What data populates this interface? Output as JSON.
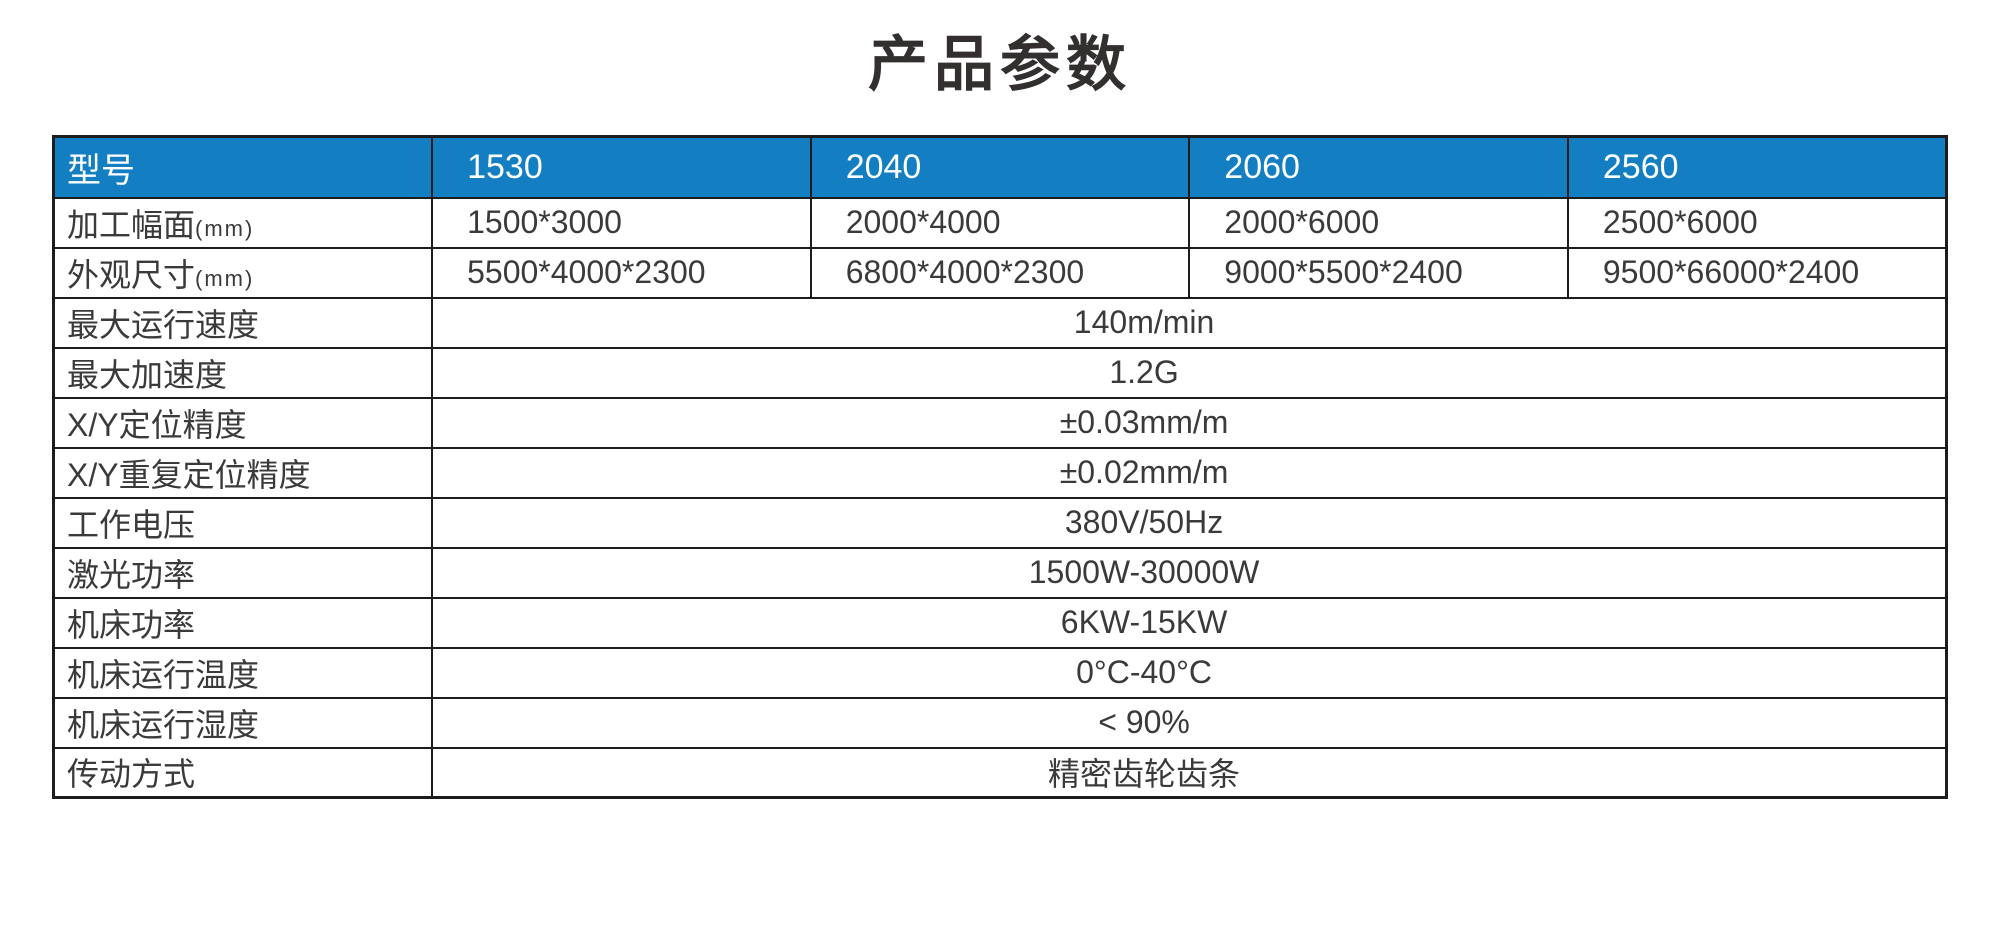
{
  "page": {
    "title": "产品参数"
  },
  "colors": {
    "header_bg": "#137fc2",
    "header_text": "#ffffff",
    "border": "#1d1d1d",
    "body_text": "#3a3a3a"
  },
  "table": {
    "header": {
      "label": "型号",
      "models": [
        "1530",
        "2040",
        "2060",
        "2560"
      ]
    },
    "dim_rows": [
      {
        "label": "加工幅面",
        "suffix": "(mm)",
        "values": [
          "1500*3000",
          "2000*4000",
          "2000*6000",
          "2500*6000"
        ]
      },
      {
        "label": "外观尺寸",
        "suffix": "(mm)",
        "values": [
          "5500*4000*2300",
          "6800*4000*2300",
          "9000*5500*2400",
          "9500*66000*2400"
        ]
      }
    ],
    "merged_rows": [
      {
        "label": "最大运行速度",
        "value": "140m/min"
      },
      {
        "label": "最大加速度",
        "value": "1.2G"
      },
      {
        "label": "X/Y定位精度",
        "value": "±0.03mm/m"
      },
      {
        "label": "X/Y重复定位精度",
        "value": "±0.02mm/m"
      },
      {
        "label": "工作电压",
        "value": "380V/50Hz"
      },
      {
        "label": "激光功率",
        "value": "1500W-30000W"
      },
      {
        "label": "机床功率",
        "value": "6KW-15KW"
      },
      {
        "label": "机床运行温度",
        "value": "0°C-40°C"
      },
      {
        "label": "机床运行湿度",
        "value": "< 90%"
      },
      {
        "label": "传动方式",
        "value": "精密齿轮齿条"
      }
    ]
  }
}
